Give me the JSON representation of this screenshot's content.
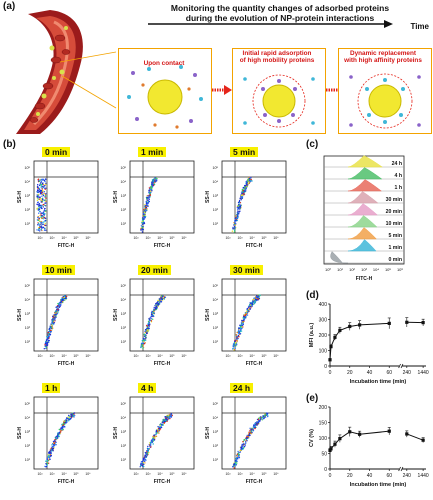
{
  "panels": {
    "a": "(a)",
    "b": "(b)",
    "c": "(c)",
    "d": "(d)",
    "e": "(e)"
  },
  "header": {
    "title_line1": "Monitoring the quantity changes of adsorbed proteins",
    "title_line2": "during the evolution of NP-protein interactions",
    "time_label": "Time"
  },
  "stages": [
    {
      "caption": "Upon contact"
    },
    {
      "caption_line1": "Initial rapid adsorption",
      "caption_line2": "of high mobility proteins"
    },
    {
      "caption_line1": "Dynamic replacement",
      "caption_line2": "with high affinity proteins"
    }
  ],
  "flow_plots": {
    "timepoints": [
      "0 min",
      "1 min",
      "5 min",
      "10 min",
      "20 min",
      "30 min",
      "1 h",
      "4 h",
      "24 h"
    ],
    "x_axis_label": "FITC-H",
    "y_axis_label": "SS-H",
    "x_ticks": [
      "10²",
      "10³",
      "10⁴",
      "10⁵",
      "10⁶"
    ],
    "y_ticks": [
      "10⁵",
      "10⁴",
      "10³",
      "10²",
      "10¹"
    ]
  },
  "histogram": {
    "labels": [
      "24 h",
      "4 h",
      "1 h",
      "30 min",
      "20 min",
      "10 min",
      "5 min",
      "1 min",
      "0 min"
    ],
    "colors": [
      "#e9e24a",
      "#4fc06b",
      "#e86a5c",
      "#d9a3ae",
      "#e6a0c8",
      "#8dd58c",
      "#f1a14a",
      "#3fb7d8",
      "#9aa1a6"
    ],
    "x_axis_label": "FITC-H",
    "x_ticks": [
      "10⁰",
      "10¹",
      "10²",
      "10³",
      "10⁴",
      "10⁵",
      "10⁶"
    ]
  },
  "chart_data": [
    {
      "type": "line",
      "panel": "d",
      "ylabel": "MFI (a.u.)",
      "xlabel": "Incubation time (min)",
      "x_ticks": [
        "0",
        "20",
        "40",
        "60",
        "240",
        "1440"
      ],
      "y_ticks": [
        "0",
        "100",
        "200",
        "300",
        "400"
      ],
      "ylim": [
        0,
        400
      ],
      "x": [
        0,
        1,
        5,
        10,
        20,
        30,
        60,
        240,
        1440
      ],
      "values": [
        40,
        125,
        185,
        230,
        255,
        265,
        275,
        282,
        280
      ]
    },
    {
      "type": "line",
      "panel": "e",
      "ylabel": "CV (%)",
      "xlabel": "Incubation time (min)",
      "x_ticks": [
        "0",
        "20",
        "40",
        "60",
        "240",
        "1440"
      ],
      "y_ticks": [
        "0",
        "50",
        "100",
        "150",
        "200"
      ],
      "ylim": [
        0,
        200
      ],
      "x": [
        0,
        1,
        5,
        10,
        20,
        30,
        60,
        240,
        1440
      ],
      "values": [
        60,
        65,
        80,
        98,
        120,
        112,
        122,
        113,
        93
      ]
    }
  ]
}
